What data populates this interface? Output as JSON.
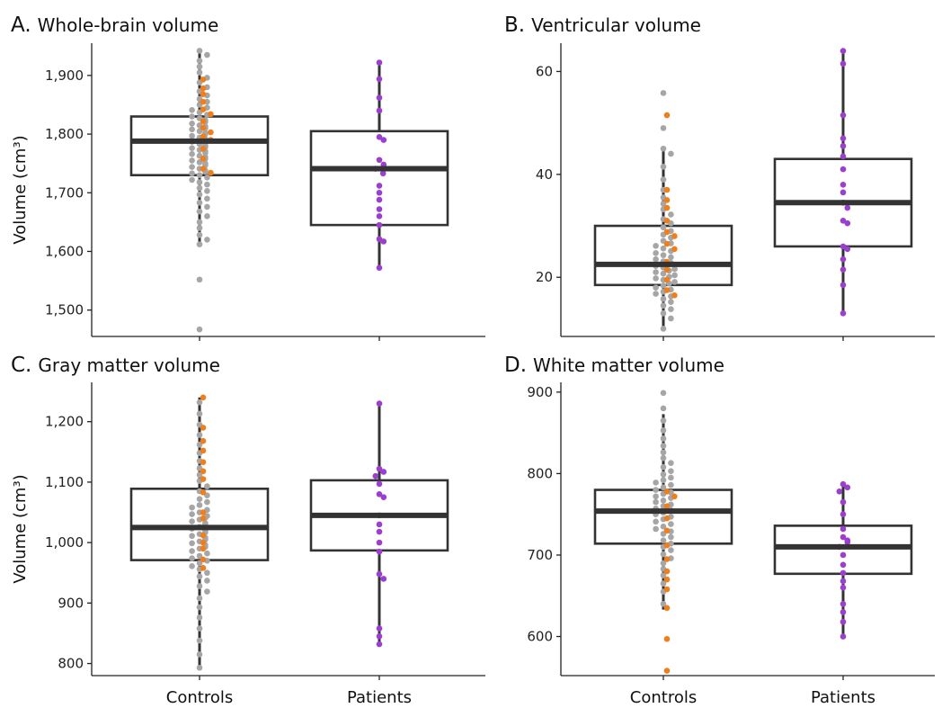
{
  "colors": {
    "control_dot": "#a6a6a6",
    "control_highlight": "#f07f1b",
    "patient_dot": "#9a3fcf",
    "patient_whisker_dot": "#6a2c8c",
    "box_stroke": "#333333"
  },
  "chart_data": [
    {
      "type": "box",
      "label": "A.",
      "title": "Whole-brain volume",
      "ylabel": "Volume (cm³)",
      "categories": [
        "Controls",
        "Patients"
      ],
      "yticks": [
        1500,
        1600,
        1700,
        1800,
        1900
      ],
      "ytick_labels": [
        "1,500",
        "1,600",
        "1,700",
        "1,800",
        "1,900"
      ],
      "ylim": [
        1455,
        1955
      ],
      "boxes": [
        {
          "group": "Controls",
          "min": 1612,
          "q1": 1730,
          "median": 1788,
          "q3": 1830,
          "max": 1942
        },
        {
          "group": "Patients",
          "min": 1572,
          "q1": 1645,
          "median": 1741,
          "q3": 1805,
          "max": 1922
        }
      ],
      "controls_gray": [
        1467,
        1552,
        1612,
        1620,
        1628,
        1640,
        1650,
        1660,
        1668,
        1676,
        1683,
        1690,
        1697,
        1703,
        1708,
        1714,
        1718,
        1722,
        1726,
        1730,
        1733,
        1736,
        1738,
        1741,
        1744,
        1747,
        1750,
        1752,
        1755,
        1758,
        1761,
        1763,
        1766,
        1768,
        1771,
        1773,
        1776,
        1778,
        1780,
        1783,
        1785,
        1787,
        1790,
        1792,
        1794,
        1797,
        1800,
        1802,
        1805,
        1808,
        1810,
        1813,
        1815,
        1818,
        1821,
        1824,
        1827,
        1830,
        1833,
        1837,
        1841,
        1845,
        1850,
        1855,
        1860,
        1866,
        1873,
        1880,
        1888,
        1896,
        1905,
        1915,
        1925,
        1935,
        1942
      ],
      "controls_orange": [
        1734,
        1741,
        1758,
        1775,
        1790,
        1796,
        1803,
        1811,
        1822,
        1834,
        1842,
        1855,
        1868,
        1878,
        1893
      ],
      "patients": [
        1572,
        1617,
        1621,
        1645,
        1660,
        1672,
        1688,
        1700,
        1712,
        1733,
        1741,
        1748,
        1756,
        1790,
        1795,
        1840,
        1862,
        1894,
        1922
      ]
    },
    {
      "type": "box",
      "label": "B.",
      "title": "Ventricular volume",
      "ylabel": "",
      "categories": [
        "Controls",
        "Patients"
      ],
      "yticks": [
        20,
        40,
        60
      ],
      "ytick_labels": [
        "20",
        "40",
        "60"
      ],
      "ylim": [
        8.5,
        65.5
      ],
      "boxes": [
        {
          "group": "Controls",
          "min": 10,
          "q1": 18.5,
          "median": 22.5,
          "q3": 30,
          "max": 45
        },
        {
          "group": "Patients",
          "min": 13,
          "q1": 26,
          "median": 34.5,
          "q3": 43,
          "max": 64
        }
      ],
      "controls_gray": [
        10,
        12,
        13,
        13.8,
        14.5,
        15.2,
        15.8,
        16.3,
        16.8,
        17.2,
        17.6,
        18,
        18.4,
        18.8,
        19.1,
        19.5,
        19.8,
        20.1,
        20.4,
        20.7,
        21,
        21.3,
        21.6,
        21.9,
        22.2,
        22.5,
        22.8,
        23.1,
        23.5,
        23.9,
        24.3,
        24.7,
        25.1,
        25.6,
        26.1,
        26.6,
        27.1,
        27.7,
        28.3,
        29,
        29.7,
        30.5,
        31.3,
        32.2,
        33.2,
        34.3,
        35.5,
        37,
        39,
        41.5,
        44,
        45,
        49,
        55.8
      ],
      "controls_orange": [
        16.5,
        17.5,
        19.5,
        21.5,
        23,
        25.5,
        26.5,
        28,
        28.8,
        31,
        33.5,
        35,
        37,
        51.5
      ],
      "patients": [
        13,
        18.5,
        21.5,
        23.5,
        25.5,
        26,
        30.5,
        31,
        33.5,
        34.5,
        36.5,
        38,
        41,
        43.5,
        45.5,
        47,
        51.5,
        61.5,
        64
      ]
    },
    {
      "type": "box",
      "label": "C.",
      "title": "Gray matter volume",
      "ylabel": "Volume (cm³)",
      "categories": [
        "Controls",
        "Patients"
      ],
      "yticks": [
        800,
        900,
        1000,
        1100,
        1200
      ],
      "ytick_labels": [
        "800",
        "900",
        "1,000",
        "1,100",
        "1,200"
      ],
      "ylim": [
        780,
        1265
      ],
      "boxes": [
        {
          "group": "Controls",
          "min": 793,
          "q1": 971,
          "median": 1025,
          "q3": 1089,
          "max": 1240
        },
        {
          "group": "Patients",
          "min": 832,
          "q1": 987,
          "median": 1045,
          "q3": 1103,
          "max": 1230
        }
      ],
      "controls_gray": [
        793,
        815,
        838,
        858,
        876,
        893,
        908,
        919,
        928,
        937,
        944,
        950,
        956,
        961,
        966,
        970,
        974,
        978,
        982,
        986,
        990,
        993,
        996,
        999,
        1002,
        1005,
        1008,
        1011,
        1014,
        1017,
        1020,
        1023,
        1026,
        1029,
        1032,
        1035,
        1038,
        1041,
        1044,
        1047,
        1050,
        1054,
        1058,
        1062,
        1067,
        1072,
        1078,
        1085,
        1093,
        1102,
        1112,
        1123,
        1135,
        1148,
        1162,
        1178,
        1195,
        1213,
        1232
      ],
      "controls_orange": [
        958,
        972,
        990,
        1000,
        1012,
        1025,
        1040,
        1050,
        1083,
        1105,
        1118,
        1133,
        1152,
        1168,
        1190,
        1240
      ],
      "patients": [
        832,
        845,
        858,
        940,
        948,
        985,
        1000,
        1018,
        1030,
        1045,
        1075,
        1080,
        1097,
        1110,
        1117,
        1122,
        1230
      ]
    },
    {
      "type": "box",
      "label": "D.",
      "title": "White matter volume",
      "ylabel": "",
      "categories": [
        "Controls",
        "Patients"
      ],
      "yticks": [
        600,
        700,
        800,
        900
      ],
      "ytick_labels": [
        "600",
        "700",
        "800",
        "900"
      ],
      "ylim": [
        552,
        912
      ],
      "boxes": [
        {
          "group": "Controls",
          "min": 633,
          "q1": 714,
          "median": 754,
          "q3": 780,
          "max": 873
        },
        {
          "group": "Patients",
          "min": 600,
          "q1": 677,
          "median": 710,
          "q3": 736,
          "max": 787
        }
      ],
      "controls_gray": [
        640,
        655,
        665,
        675,
        683,
        690,
        696,
        701,
        706,
        710,
        714,
        718,
        722,
        726,
        729,
        732,
        735,
        738,
        741,
        744,
        747,
        750,
        752,
        755,
        757,
        760,
        762,
        765,
        767,
        770,
        772,
        775,
        777,
        780,
        783,
        786,
        789,
        792,
        795,
        799,
        803,
        808,
        813,
        819,
        826,
        834,
        843,
        853,
        865,
        880,
        899
      ],
      "controls_orange": [
        558,
        597,
        635,
        658,
        670,
        680,
        695,
        712,
        730,
        745,
        760,
        772,
        778
      ],
      "patients": [
        600,
        618,
        630,
        640,
        660,
        668,
        678,
        688,
        700,
        710,
        716,
        718,
        722,
        732,
        750,
        765,
        778,
        783,
        787
      ]
    }
  ]
}
